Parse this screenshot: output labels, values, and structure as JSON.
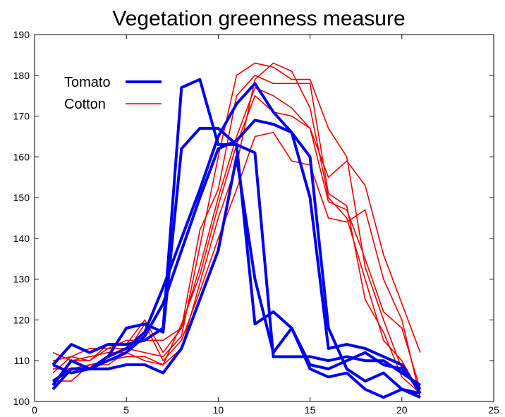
{
  "chart_data": {
    "type": "line",
    "title": "Vegetation greenness measure",
    "xlim": [
      0,
      25
    ],
    "ylim": [
      100,
      190
    ],
    "xticks": [
      0,
      5,
      10,
      15,
      20,
      25
    ],
    "yticks": [
      100,
      110,
      120,
      130,
      140,
      150,
      160,
      170,
      180,
      190
    ],
    "grid": false,
    "legend": {
      "placement": "top-left",
      "entries": [
        {
          "label": "Tomato",
          "color": "#0000ee"
        },
        {
          "label": "Cotton",
          "color": "#ee0000"
        }
      ]
    },
    "colors": {
      "Tomato": "#0000ee",
      "Cotton": "#ee0000"
    },
    "x": [
      1,
      2,
      3,
      4,
      5,
      6,
      7,
      8,
      9,
      10,
      11,
      12,
      13,
      14,
      15,
      16,
      17,
      18,
      19,
      20,
      21
    ],
    "series": [
      {
        "group": "Tomato",
        "values": [
          109,
          114,
          112,
          114,
          114,
          115,
          118,
          177,
          179,
          163,
          163,
          161,
          111,
          111,
          111,
          110,
          111,
          110,
          110,
          107,
          104
        ]
      },
      {
        "group": "Tomato",
        "values": [
          104,
          110,
          108,
          111,
          118,
          119,
          117,
          162,
          167,
          167,
          163,
          119,
          122,
          118,
          108,
          106,
          107,
          103,
          101,
          103,
          101
        ]
      },
      {
        "group": "Tomato",
        "values": [
          109,
          107,
          108,
          111,
          113,
          117,
          128,
          140,
          152,
          165,
          173,
          178,
          171,
          166,
          160,
          118,
          108,
          105,
          107,
          103,
          102
        ]
      },
      {
        "group": "Tomato",
        "values": [
          105,
          108,
          108,
          110,
          112,
          116,
          124,
          137,
          150,
          162,
          164,
          169,
          168,
          166,
          150,
          113,
          114,
          113,
          111,
          109,
          102
        ]
      },
      {
        "group": "Tomato",
        "values": [
          103,
          108,
          108,
          108,
          109,
          109,
          107,
          113,
          125,
          137,
          160,
          130,
          112,
          118,
          109,
          108,
          110,
          112,
          109,
          108,
          103
        ]
      },
      {
        "group": "Cotton",
        "values": [
          112,
          110,
          110,
          114,
          114,
          120,
          112,
          118,
          133,
          150,
          165,
          177,
          175,
          172,
          167,
          155,
          159,
          153,
          136,
          124,
          112
        ]
      },
      {
        "group": "Cotton",
        "values": [
          107,
          111,
          113,
          113,
          113,
          112,
          111,
          116,
          138,
          160,
          180,
          183,
          182,
          179,
          179,
          167,
          160,
          133,
          120,
          108,
          103
        ]
      },
      {
        "group": "Cotton",
        "values": [
          110,
          111,
          110,
          113,
          115,
          115,
          115,
          118,
          142,
          152,
          175,
          180,
          178,
          178,
          178,
          151,
          148,
          125,
          117,
          106,
          102
        ]
      },
      {
        "group": "Cotton",
        "values": [
          105,
          105,
          109,
          109,
          112,
          119,
          110,
          115,
          127,
          140,
          152,
          165,
          166,
          159,
          158,
          145,
          144,
          147,
          130,
          120,
          101
        ]
      },
      {
        "group": "Cotton",
        "values": [
          104,
          110,
          111,
          112,
          112,
          110,
          109,
          119,
          131,
          148,
          163,
          175,
          171,
          170,
          167,
          149,
          147,
          135,
          122,
          118,
          103
        ]
      },
      {
        "group": "Cotton",
        "values": [
          108,
          108,
          109,
          110,
          111,
          111,
          109,
          113,
          129,
          145,
          158,
          179,
          183,
          181,
          172,
          150,
          145,
          130,
          115,
          110,
          102
        ]
      }
    ]
  }
}
